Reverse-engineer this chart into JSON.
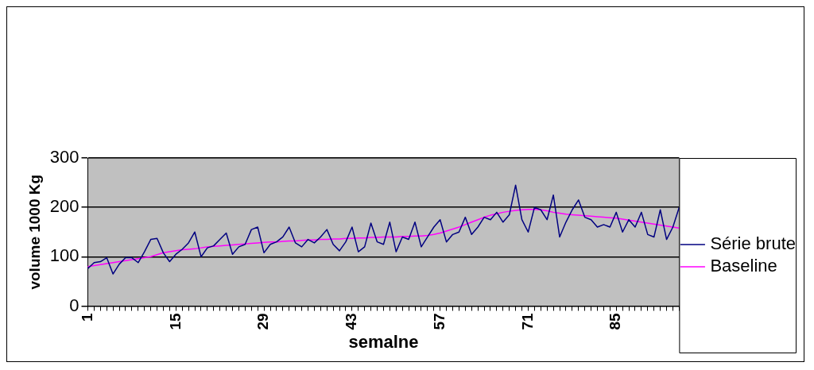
{
  "chart_data": {
    "type": "line",
    "xlabel": "semalne",
    "ylabel": "volume 1000 Kg",
    "categories": [
      "1",
      null,
      null,
      null,
      null,
      null,
      null,
      null,
      null,
      null,
      null,
      null,
      null,
      null,
      "15",
      null,
      null,
      null,
      null,
      null,
      null,
      null,
      null,
      null,
      null,
      null,
      null,
      null,
      "29",
      null,
      null,
      null,
      null,
      null,
      null,
      null,
      null,
      null,
      null,
      null,
      null,
      null,
      "43",
      null,
      null,
      null,
      null,
      null,
      null,
      null,
      null,
      null,
      null,
      null,
      null,
      null,
      "57",
      null,
      null,
      null,
      null,
      null,
      null,
      null,
      null,
      null,
      null,
      null,
      null,
      null,
      "71",
      null,
      null,
      null,
      null,
      null,
      null,
      null,
      null,
      null,
      null,
      null,
      null,
      null,
      "85",
      null,
      null,
      null,
      null,
      null,
      null,
      null,
      null,
      null,
      null
    ],
    "series": [
      {
        "name": "Série brute",
        "color": "#000080",
        "values": [
          76,
          88,
          90,
          98,
          65,
          85,
          98,
          98,
          88,
          110,
          135,
          137,
          108,
          90,
          105,
          115,
          128,
          150,
          100,
          118,
          122,
          135,
          148,
          105,
          120,
          125,
          155,
          160,
          108,
          125,
          130,
          140,
          160,
          128,
          120,
          135,
          128,
          140,
          155,
          125,
          112,
          130,
          160,
          110,
          120,
          168,
          130,
          125,
          170,
          110,
          140,
          135,
          170,
          120,
          140,
          160,
          175,
          130,
          145,
          150,
          180,
          145,
          160,
          180,
          175,
          190,
          170,
          185,
          245,
          175,
          150,
          200,
          195,
          175,
          225,
          140,
          170,
          195,
          215,
          180,
          175,
          160,
          165,
          160,
          190,
          150,
          175,
          160,
          190,
          145,
          140,
          195,
          135,
          160,
          200
        ]
      },
      {
        "name": "Baseline",
        "color": "#ff00ff",
        "values": [
          80,
          82,
          84,
          86,
          88,
          90,
          92,
          94,
          96,
          98,
          100,
          104,
          108,
          110,
          112,
          114,
          115,
          116,
          118,
          120,
          121,
          122,
          123,
          124,
          125,
          126,
          127,
          128,
          129,
          130,
          130,
          131,
          132,
          132,
          133,
          134,
          134,
          135,
          135,
          136,
          136,
          137,
          137,
          138,
          138,
          139,
          139,
          140,
          140,
          140,
          141,
          141,
          142,
          142,
          143,
          145,
          148,
          152,
          156,
          160,
          165,
          170,
          175,
          180,
          184,
          187,
          190,
          192,
          194,
          195,
          196,
          196,
          195,
          193,
          190,
          188,
          186,
          185,
          184,
          183,
          182,
          181,
          180,
          179,
          178,
          176,
          174,
          172,
          170,
          168,
          166,
          164,
          162,
          160,
          158
        ]
      }
    ],
    "ylim": [
      0,
      300
    ],
    "yticks": [
      0,
      100,
      200,
      300
    ],
    "grid": "y",
    "legend": "right",
    "marker": "none",
    "line_style": "solid"
  }
}
